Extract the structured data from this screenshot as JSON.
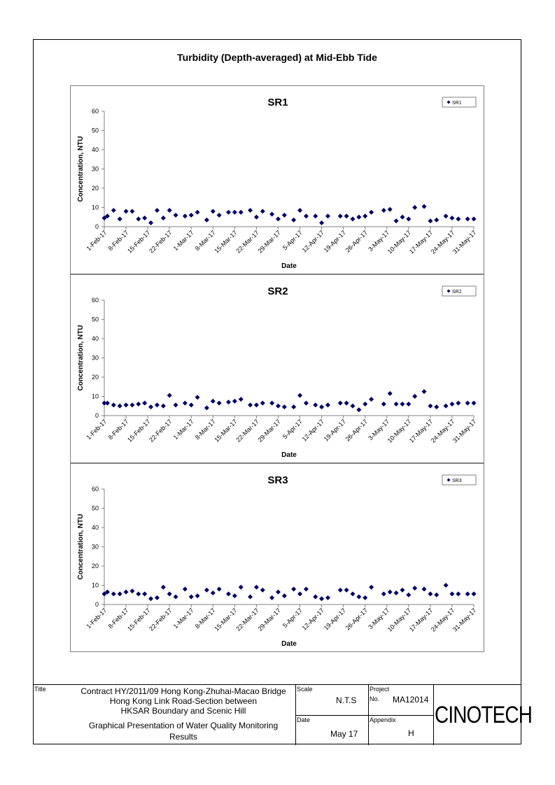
{
  "page_title": "Turbidity (Depth-averaged) at Mid-Ebb Tide",
  "chart_data": [
    {
      "type": "scatter",
      "title": "SR1",
      "xlabel": "Date",
      "ylabel": "Concentration, NTU",
      "ylim": [
        0,
        60
      ],
      "yticks": [
        0,
        10,
        20,
        30,
        40,
        50,
        60
      ],
      "xticks": [
        "1-Feb-17",
        "8-Feb-17",
        "15-Feb-17",
        "22-Feb-17",
        "1-Mar-17",
        "8-Mar-17",
        "15-Mar-17",
        "22-Mar-17",
        "29-Mar-17",
        "5-Apr-17",
        "12-Apr-17",
        "19-Apr-17",
        "26-Apr-17",
        "3-May-17",
        "10-May-17",
        "17-May-17",
        "24-May-17",
        "31-May-17"
      ],
      "legend": "top-right",
      "series": [
        {
          "name": "SR1",
          "color": "#000066",
          "x": [
            "1-Feb-17",
            "2-Feb-17",
            "4-Feb-17",
            "6-Feb-17",
            "8-Feb-17",
            "10-Feb-17",
            "12-Feb-17",
            "14-Feb-17",
            "16-Feb-17",
            "18-Feb-17",
            "20-Feb-17",
            "22-Feb-17",
            "24-Feb-17",
            "27-Feb-17",
            "1-Mar-17",
            "3-Mar-17",
            "6-Mar-17",
            "8-Mar-17",
            "10-Mar-17",
            "13-Mar-17",
            "15-Mar-17",
            "17-Mar-17",
            "20-Mar-17",
            "22-Mar-17",
            "24-Mar-17",
            "27-Mar-17",
            "29-Mar-17",
            "31-Mar-17",
            "3-Apr-17",
            "5-Apr-17",
            "7-Apr-17",
            "10-Apr-17",
            "12-Apr-17",
            "14-Apr-17",
            "18-Apr-17",
            "20-Apr-17",
            "22-Apr-17",
            "24-Apr-17",
            "26-Apr-17",
            "28-Apr-17",
            "2-May-17",
            "4-May-17",
            "6-May-17",
            "8-May-17",
            "10-May-17",
            "12-May-17",
            "15-May-17",
            "17-May-17",
            "19-May-17",
            "22-May-17",
            "24-May-17",
            "26-May-17",
            "29-May-17",
            "31-May-17"
          ],
          "y": [
            4.5,
            5.5,
            8.5,
            4,
            8,
            8,
            4,
            4.5,
            2,
            8.5,
            4.5,
            8.5,
            6,
            5.5,
            6,
            7.5,
            3.5,
            8,
            6,
            7.5,
            7.5,
            7.5,
            8.5,
            5,
            8,
            6.5,
            4,
            6,
            3.5,
            8.5,
            5.5,
            5.5,
            2,
            5.5,
            5.5,
            5.5,
            4,
            5,
            5.5,
            7.5,
            8.5,
            9,
            3,
            5,
            4,
            10,
            10.5,
            3,
            3.5,
            5.5,
            4.5,
            4,
            4,
            4
          ]
        }
      ]
    },
    {
      "type": "scatter",
      "title": "SR2",
      "xlabel": "Date",
      "ylabel": "Concentration, NTU",
      "ylim": [
        0,
        60
      ],
      "yticks": [
        0,
        10,
        20,
        30,
        40,
        50,
        60
      ],
      "xticks": [
        "1-Feb-17",
        "8-Feb-17",
        "15-Feb-17",
        "22-Feb-17",
        "1-Mar-17",
        "8-Mar-17",
        "15-Mar-17",
        "22-Mar-17",
        "29-Mar-17",
        "5-Apr-17",
        "12-Apr-17",
        "19-Apr-17",
        "26-Apr-17",
        "3-May-17",
        "10-May-17",
        "17-May-17",
        "24-May-17",
        "31-May-17"
      ],
      "legend": "top-right",
      "series": [
        {
          "name": "SR2",
          "color": "#000066",
          "x": [
            "1-Feb-17",
            "2-Feb-17",
            "4-Feb-17",
            "6-Feb-17",
            "8-Feb-17",
            "10-Feb-17",
            "12-Feb-17",
            "14-Feb-17",
            "16-Feb-17",
            "18-Feb-17",
            "20-Feb-17",
            "22-Feb-17",
            "24-Feb-17",
            "27-Feb-17",
            "1-Mar-17",
            "3-Mar-17",
            "6-Mar-17",
            "8-Mar-17",
            "10-Mar-17",
            "13-Mar-17",
            "15-Mar-17",
            "17-Mar-17",
            "20-Mar-17",
            "22-Mar-17",
            "24-Mar-17",
            "27-Mar-17",
            "29-Mar-17",
            "31-Mar-17",
            "3-Apr-17",
            "5-Apr-17",
            "7-Apr-17",
            "10-Apr-17",
            "12-Apr-17",
            "14-Apr-17",
            "18-Apr-17",
            "20-Apr-17",
            "22-Apr-17",
            "24-Apr-17",
            "26-Apr-17",
            "28-Apr-17",
            "2-May-17",
            "4-May-17",
            "6-May-17",
            "8-May-17",
            "10-May-17",
            "12-May-17",
            "15-May-17",
            "17-May-17",
            "19-May-17",
            "22-May-17",
            "24-May-17",
            "26-May-17",
            "29-May-17",
            "31-May-17"
          ],
          "y": [
            6.5,
            6.5,
            5.5,
            5,
            5.5,
            5.5,
            6,
            6.5,
            4.5,
            5.5,
            5,
            10.5,
            5.5,
            6.5,
            5.5,
            9.5,
            4,
            7.5,
            6.5,
            7,
            7.5,
            8.5,
            5.5,
            5.5,
            6.5,
            6.5,
            5,
            4.5,
            4.5,
            10.5,
            6.5,
            5.5,
            4.5,
            5.5,
            6.5,
            6.5,
            5,
            3,
            6,
            8.5,
            6,
            11.5,
            6,
            6,
            6,
            10,
            12.5,
            5,
            4.5,
            5,
            6,
            6.5,
            6.5,
            6.5
          ]
        }
      ]
    },
    {
      "type": "scatter",
      "title": "SR3",
      "xlabel": "Date",
      "ylabel": "Concentration, NTU",
      "ylim": [
        0,
        60
      ],
      "yticks": [
        0,
        10,
        20,
        30,
        40,
        50,
        60
      ],
      "xticks": [
        "1-Feb-17",
        "8-Feb-17",
        "15-Feb-17",
        "22-Feb-17",
        "1-Mar-17",
        "8-Mar-17",
        "15-Mar-17",
        "22-Mar-17",
        "29-Mar-17",
        "5-Apr-17",
        "12-Apr-17",
        "19-Apr-17",
        "26-Apr-17",
        "3-May-17",
        "10-May-17",
        "17-May-17",
        "24-May-17",
        "31-May-17"
      ],
      "legend": "top-right",
      "series": [
        {
          "name": "SR3",
          "color": "#000066",
          "x": [
            "1-Feb-17",
            "2-Feb-17",
            "4-Feb-17",
            "6-Feb-17",
            "8-Feb-17",
            "10-Feb-17",
            "12-Feb-17",
            "14-Feb-17",
            "16-Feb-17",
            "18-Feb-17",
            "20-Feb-17",
            "22-Feb-17",
            "24-Feb-17",
            "27-Feb-17",
            "1-Mar-17",
            "3-Mar-17",
            "6-Mar-17",
            "8-Mar-17",
            "10-Mar-17",
            "13-Mar-17",
            "15-Mar-17",
            "17-Mar-17",
            "20-Mar-17",
            "22-Mar-17",
            "24-Mar-17",
            "27-Mar-17",
            "29-Mar-17",
            "31-Mar-17",
            "3-Apr-17",
            "5-Apr-17",
            "7-Apr-17",
            "10-Apr-17",
            "12-Apr-17",
            "14-Apr-17",
            "18-Apr-17",
            "20-Apr-17",
            "22-Apr-17",
            "24-Apr-17",
            "26-Apr-17",
            "28-Apr-17",
            "2-May-17",
            "4-May-17",
            "6-May-17",
            "8-May-17",
            "10-May-17",
            "12-May-17",
            "15-May-17",
            "17-May-17",
            "19-May-17",
            "22-May-17",
            "24-May-17",
            "26-May-17",
            "29-May-17",
            "31-May-17"
          ],
          "y": [
            5.5,
            6.5,
            5.5,
            5.5,
            6.5,
            7,
            5.5,
            5.5,
            3,
            3.5,
            9,
            5.5,
            4,
            8,
            4,
            4.5,
            7.5,
            6,
            8,
            5.5,
            4.5,
            9,
            4,
            9,
            7.5,
            3.5,
            6.5,
            4.5,
            8,
            5.5,
            8,
            4,
            3,
            3.5,
            7.5,
            7.5,
            5.5,
            4,
            3.5,
            9,
            5.5,
            6.5,
            6,
            7.5,
            5,
            8.5,
            8,
            5.5,
            5,
            10,
            5.5,
            5.5,
            5.5,
            5.5
          ]
        }
      ]
    }
  ],
  "title_block": {
    "title_label": "Title",
    "title_lines": [
      "Contract HY/2011/09 Hong Kong-Zhuhai-Macao Bridge",
      "Hong Kong Link Road-Section between",
      "HKSAR Boundary and Scenic Hill"
    ],
    "subtitle_lines": [
      "Graphical Presentation of Water Quality Monitoring",
      "Results"
    ],
    "scale_label": "Scale",
    "scale_value": "N.T.S",
    "date_label": "Date",
    "date_value": "May 17",
    "project_label": "Project",
    "project_no_label": "No.",
    "project_no_value": "MA12014",
    "appendix_label": "Appendix",
    "appendix_value": "H",
    "logo_text": "CINOTECH"
  }
}
